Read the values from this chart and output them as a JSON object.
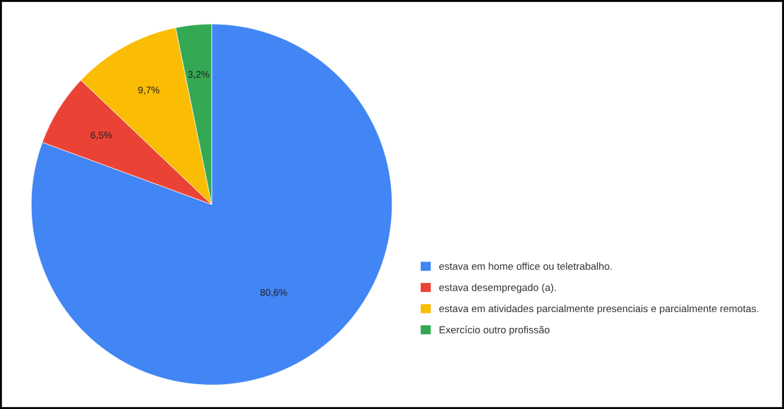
{
  "chart_data": {
    "type": "pie",
    "categories": [
      "estava em home office ou teletrabalho.",
      "estava desempregado (a).",
      "estava em atividades parcialmente presenciais e parcialmente remotas.",
      "Exercício outro profissão"
    ],
    "values": [
      80.6,
      6.5,
      9.7,
      3.2
    ],
    "value_labels": [
      "80,6%",
      "6,5%",
      "9,7%",
      "3,2%"
    ],
    "colors": [
      "#4285f4",
      "#ea4335",
      "#fbbc04",
      "#34a853"
    ],
    "legend": "right"
  }
}
